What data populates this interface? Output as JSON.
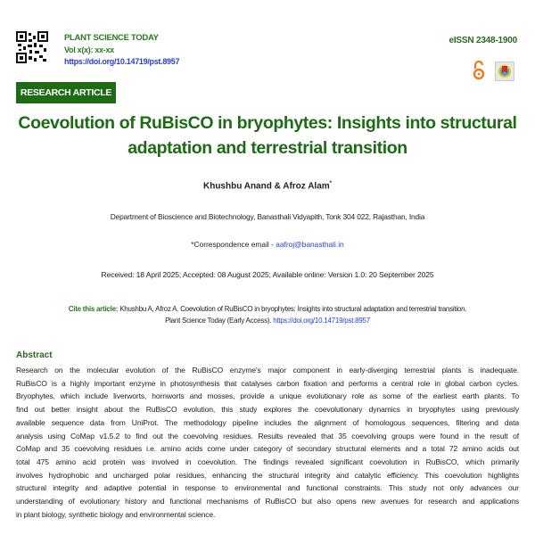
{
  "header": {
    "journal": "PLANT SCIENCE TODAY",
    "volume": "Vol x(x): xx-xx",
    "doi": "https://doi.org/10.14719/pst.8957",
    "eissn": "eISSN 2348-1900",
    "icons": [
      "qr-code-icon",
      "open-access-icon",
      "crossmark-icon"
    ],
    "article_type": "RESEARCH ARTICLE"
  },
  "title": {
    "line1": "Coevolution of RuBisCO in bryophytes: Insights into structural",
    "line2": "adaptation and terrestrial transition"
  },
  "authors": "Khushbu Anand & Afroz Alam",
  "author_mark": "*",
  "affiliation": "Department of Bioscience and Biotechnology, Banasthali Vidyapith, Tonk 304 022, Rajasthan, India",
  "correspondence": {
    "label": "*Correspondence email - ",
    "email": "aafroj@banasthali.in"
  },
  "dates": "Received: 18 April 2025; Accepted: 08 August 2025; Available online: Version 1.0: 20 September 2025",
  "cite": {
    "label": "Cite this article:",
    "text1": " Khushbu A, Afroz A. Coevolution of RuBisCO in bryophytes: Insights into structural adaptation and terrestrial transition.",
    "text2": "Plant Science Today (Early Access). ",
    "doi": "https://doi.org/10.14719/pst.8957"
  },
  "abstract": {
    "heading": "Abstract",
    "lines": [
      "Research on the molecular evolution of the RuBisCO enzyme's major component in early-diverging terrestrial plants is inadequate.",
      "RuBisCO is a highly important enzyme in photosynthesis that catalyses carbon fixation and performs a central role in global carbon cycles.",
      "Bryophytes, which include liverworts, hornworts and mosses, provide a unique evolutionary role as some of the earliest earth plants. To",
      "find out better insight about the RuBisCO evolution, this study explores the coevolutionary dynamics in bryophytes using previously",
      "available sequence data from UniProt. The methodology pipeline includes the alignment of homologous sequences, filtering and data",
      "analysis using CoMap v1.5.2 to find out the coevolving residues. Results revealed that 35 coevolving groups were found in the result of",
      "CoMap and 35 coevolving residues i.e. amino acids come under category of secondary structural elements and a total 72 amino acids out",
      "total 475 amino acid protein was involved in coevolution. The findings revealed significant coevolution in RuBisCO, which primarily",
      "involves hydrophobic and uncharged polar residues, enhancing the structural integrity and catalytic efficiency. This coevolution highlights",
      "structural integrity and adaptive potential in response to environmental and functional constraints. This study not only advances our",
      "understanding of evolutionary history and functional mechanisms of RuBisCO but also opens new avenues for research and applications",
      "in plant biology, synthetic biology and environmental science."
    ]
  },
  "colors": {
    "green": "#1e6b16",
    "link": "#2a3fd0",
    "open_access": "#f07a1a"
  }
}
